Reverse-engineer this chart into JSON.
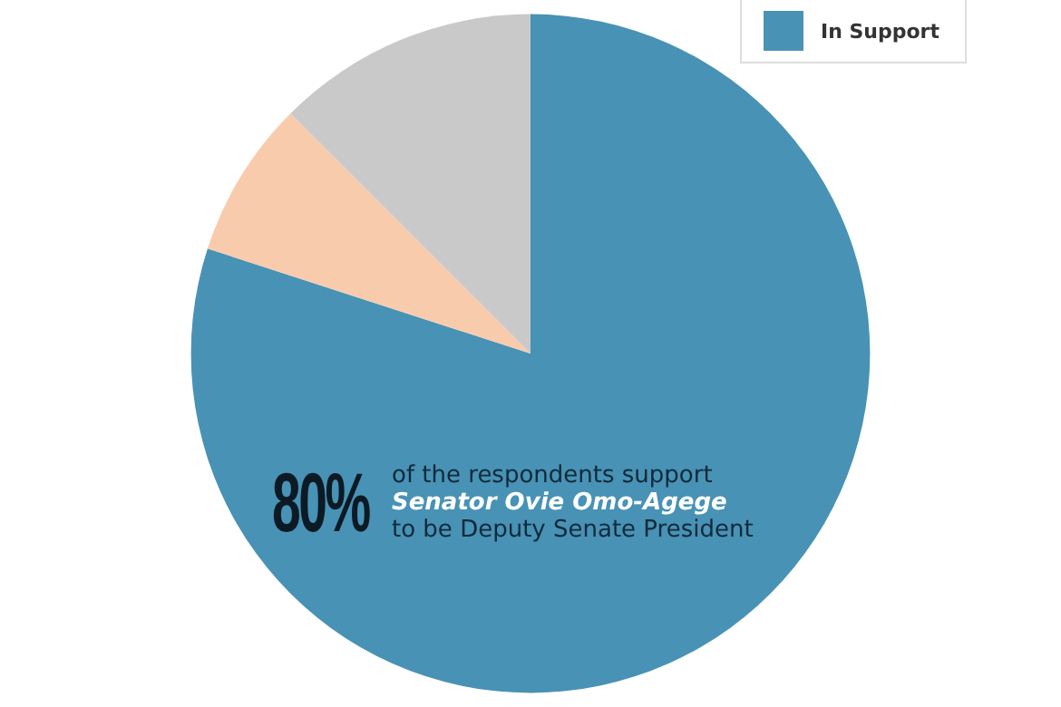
{
  "chart_data": {
    "type": "pie",
    "categories": [
      "In Support",
      null,
      null
    ],
    "values": [
      80,
      7.5,
      12.5
    ],
    "colors": [
      "#4892b5",
      "#f8cbad",
      "#c9c9c9"
    ],
    "value_labels": [
      "80%",
      null,
      null
    ],
    "annotations": [
      "of the respondents support\nSenator Ovie Omo-Agege\nto be Deputy Senate President"
    ],
    "legend": "top right"
  }
}
